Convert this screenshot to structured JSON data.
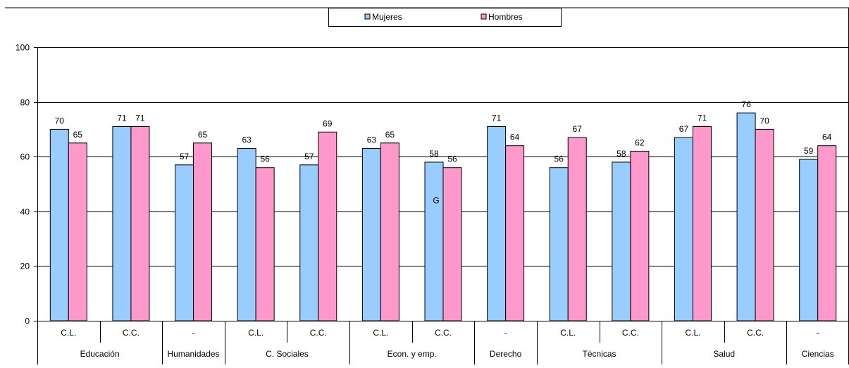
{
  "chart_data": {
    "type": "bar",
    "title": "",
    "xlabel": "",
    "ylabel": "",
    "ylim": [
      0,
      100
    ],
    "yticks": [
      0,
      20,
      40,
      60,
      80,
      100
    ],
    "grid": true,
    "legend_position": "top-center",
    "categories": [
      "C.L.",
      "C.C.",
      "-",
      "C.L.",
      "C.C.",
      "C.L.",
      "C.C.",
      "-",
      "C.L.",
      "C.C.",
      "C.L.",
      "C.C.",
      "-"
    ],
    "groups": [
      {
        "label": "Educación",
        "span": 2
      },
      {
        "label": "Humanidades",
        "span": 1
      },
      {
        "label": "C. Sociales",
        "span": 2
      },
      {
        "label": "Econ. y emp.",
        "span": 2
      },
      {
        "label": "Derecho",
        "span": 1
      },
      {
        "label": "Técnicas",
        "span": 2
      },
      {
        "label": "Salud",
        "span": 2
      },
      {
        "label": "Ciencias",
        "span": 1
      }
    ],
    "series": [
      {
        "name": "Mujeres",
        "color": "#99ccff",
        "values": [
          70,
          71,
          57,
          63,
          57,
          63,
          58,
          71,
          56,
          58,
          67,
          76,
          59
        ]
      },
      {
        "name": "Hombres",
        "color": "#ff99cc",
        "values": [
          65,
          71,
          65,
          56,
          69,
          65,
          56,
          64,
          67,
          62,
          71,
          70,
          64
        ]
      }
    ],
    "annotations": [
      {
        "text": "G",
        "near_category_index": 6,
        "y": 44
      }
    ]
  }
}
